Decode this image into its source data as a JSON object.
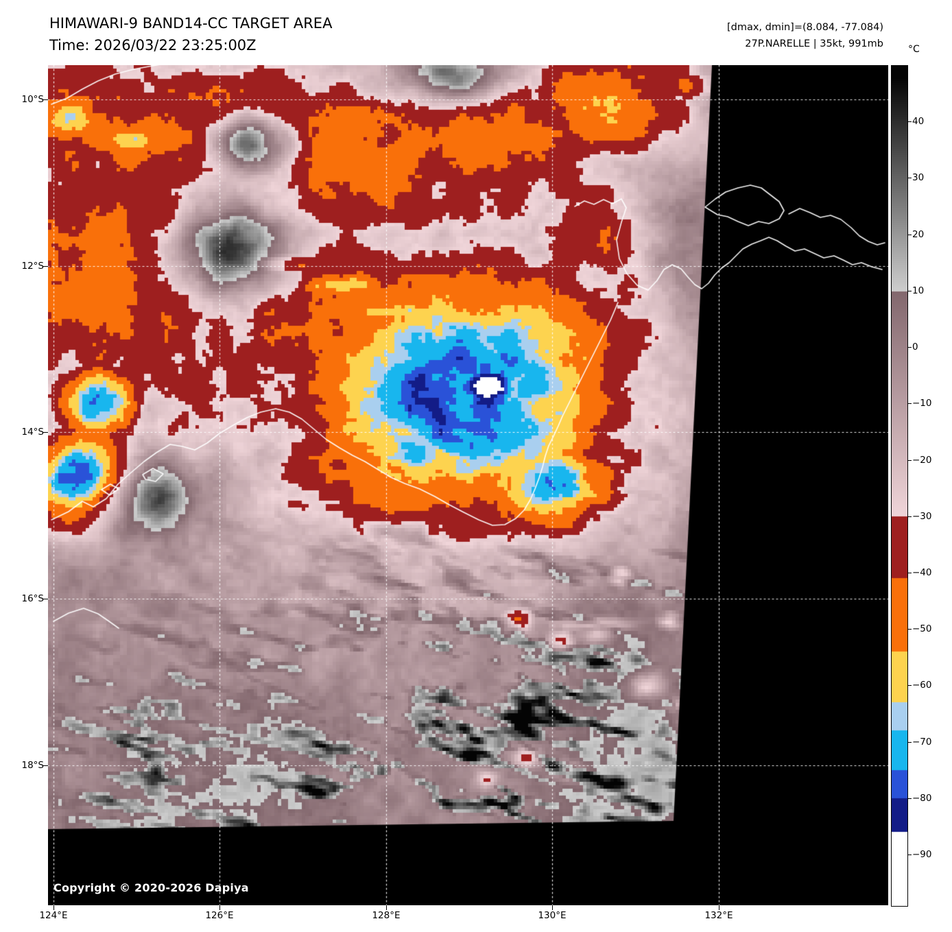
{
  "header": {
    "title": "HIMAWARI-9 BAND14-CC TARGET AREA",
    "time_line": "Time: 2026/03/22 23:25:00Z",
    "dmax_dmin_line": "[dmax, dmin]=(8.084, -77.084)",
    "storm_line": "27P.NARELLE | 35kt, 991mb"
  },
  "axes": {
    "lat_labels": [
      "10°S",
      "12°S",
      "14°S",
      "16°S",
      "18°S"
    ],
    "lon_labels": [
      "124°E",
      "126°E",
      "128°E",
      "130°E",
      "132°E"
    ]
  },
  "colorbar": {
    "unit": "°C",
    "ticks": [
      "40",
      "30",
      "20",
      "10",
      "0",
      "−10",
      "−20",
      "−30",
      "−40",
      "−50",
      "−60",
      "−70",
      "−80",
      "−90"
    ],
    "palette": {
      "dark_red": "#9e1f1f",
      "orange": "#f9700a",
      "yellow": "#fdd34f",
      "light_blue": "#a9cfef",
      "cyan": "#18b6ee",
      "blue": "#2a52d8",
      "navy": "#131c87",
      "cold_white": "#ffffff"
    }
  },
  "footer": {
    "copyright": "Copyright © 2020-2026 Dapiya"
  }
}
